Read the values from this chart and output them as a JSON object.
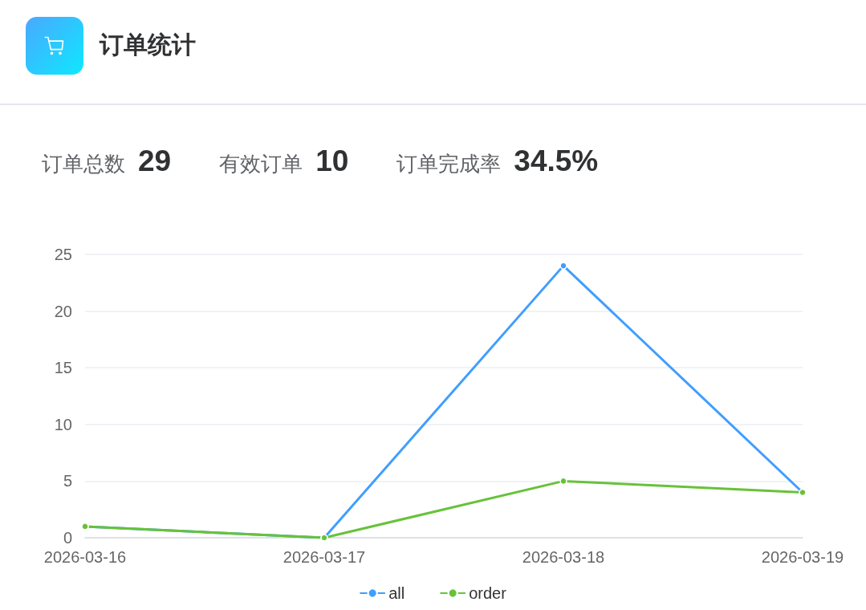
{
  "chart_data": {
    "type": "line",
    "title": "订单统计",
    "annotations": [
      "订单总数",
      "29",
      "有效订单",
      "10",
      "订单完成率",
      "34.5%"
    ],
    "categories": [
      "2026-03-16",
      "2026-03-17",
      "2026-03-18",
      "2026-03-19"
    ],
    "series": [
      {
        "name": "all",
        "color": "#409eff",
        "values": [
          1,
          0,
          24,
          4
        ]
      },
      {
        "name": "order",
        "color": "#67c23a",
        "values": [
          1,
          0,
          5,
          4
        ]
      }
    ],
    "ylim": [
      0,
      25
    ],
    "yticks": [
      0,
      5,
      10,
      15,
      20,
      25
    ],
    "grid": "y",
    "legend": "bottom",
    "marker": "circle",
    "line_style": "solid"
  }
}
